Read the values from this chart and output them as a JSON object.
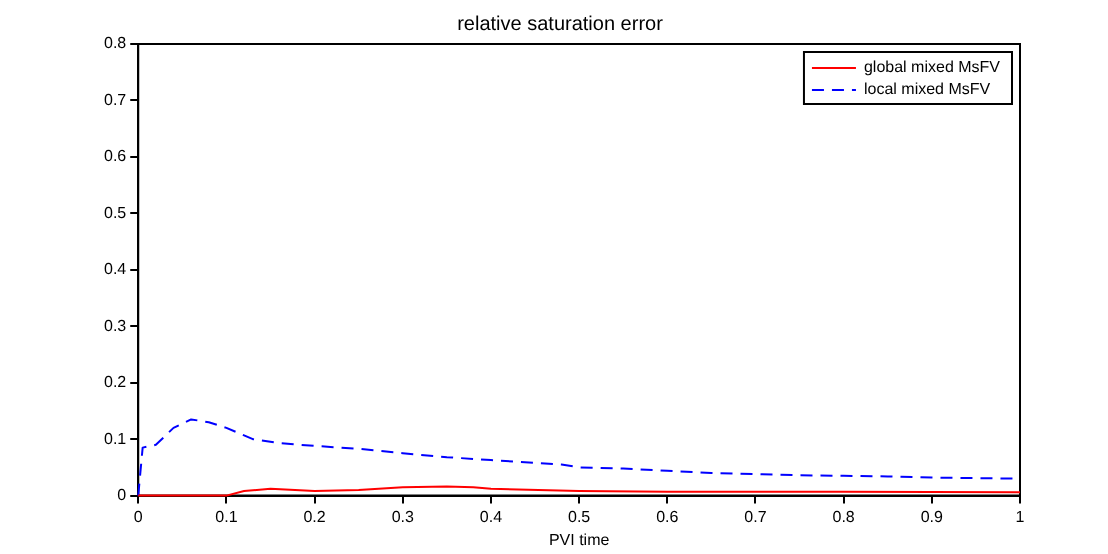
{
  "chart_data": {
    "type": "line",
    "title": "relative saturation error",
    "xlabel": "PVI time",
    "xlim": [
      0,
      1
    ],
    "xticks": [
      0,
      0.1,
      0.2,
      0.3,
      0.4,
      0.5,
      0.6,
      0.7,
      0.8,
      0.9,
      1
    ],
    "ylim": [
      0,
      0.8
    ],
    "yticks": [
      0,
      0.1,
      0.2,
      0.3,
      0.4,
      0.5,
      0.6,
      0.7,
      0.8
    ],
    "grid": false,
    "legend": "top right",
    "marker": "none",
    "series": [
      {
        "name": "global mixed MsFV",
        "color": "#ff0000",
        "line_style": "solid",
        "x": [
          0,
          0.1,
          0.12,
          0.15,
          0.2,
          0.25,
          0.3,
          0.35,
          0.38,
          0.4,
          0.5,
          0.6,
          0.8,
          1
        ],
        "values": [
          0,
          0,
          0.008,
          0.012,
          0.008,
          0.01,
          0.015,
          0.016,
          0.015,
          0.012,
          0.008,
          0.007,
          0.007,
          0.006
        ]
      },
      {
        "name": "local mixed MsFV",
        "color": "#0000ff",
        "line_style": "dashed",
        "x": [
          0,
          0.005,
          0.02,
          0.04,
          0.06,
          0.08,
          0.1,
          0.13,
          0.16,
          0.2,
          0.25,
          0.3,
          0.35,
          0.4,
          0.45,
          0.48,
          0.5,
          0.55,
          0.6,
          0.65,
          0.7,
          0.75,
          0.8,
          0.85,
          0.9,
          0.95,
          1
        ],
        "values": [
          0,
          0.085,
          0.09,
          0.12,
          0.135,
          0.13,
          0.12,
          0.1,
          0.093,
          0.088,
          0.083,
          0.075,
          0.068,
          0.063,
          0.058,
          0.055,
          0.05,
          0.048,
          0.044,
          0.04,
          0.038,
          0.036,
          0.035,
          0.034,
          0.032,
          0.031,
          0.03
        ]
      }
    ]
  }
}
